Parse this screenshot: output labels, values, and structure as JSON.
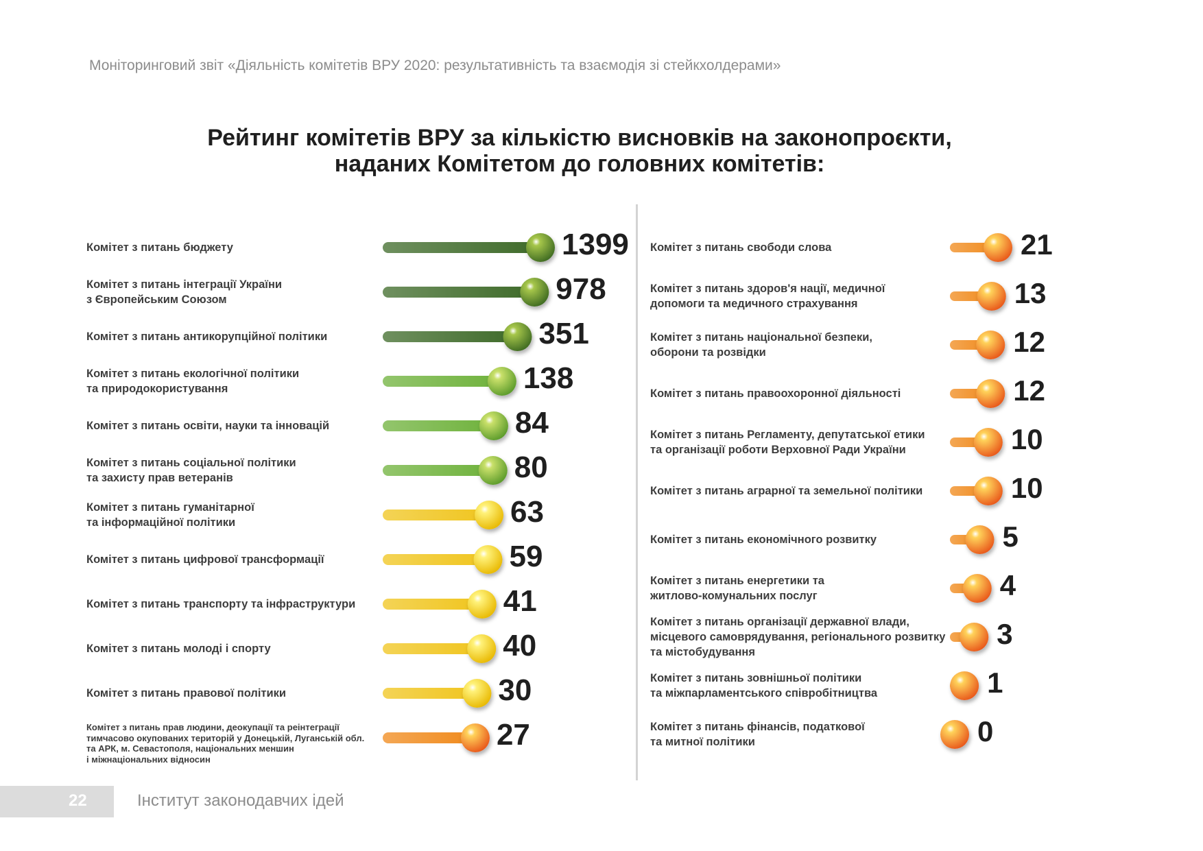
{
  "header": {
    "report_title": "Моніторинговий звіт «Діяльність комітетів ВРУ 2020: результативність та взаємодія зі стейкхолдерами»"
  },
  "footer": {
    "page_number": "22",
    "organization": "Інститут законодавчих ідей"
  },
  "chart_data": {
    "type": "bar",
    "title_line1": "Рейтинг комітетів ВРУ за кількістю висновків на законопроєкти,",
    "title_line2": "наданих Комітетом до головних комітетів:",
    "left_column": [
      {
        "label": [
          "Комітет з питань бюджету"
        ],
        "value": 1399,
        "color": "dark-green"
      },
      {
        "label": [
          "Комітет з питань інтеграції України",
          "з Європейським Союзом"
        ],
        "value": 978,
        "color": "dark-green"
      },
      {
        "label": [
          "Комітет з питань антикорупційної політики"
        ],
        "value": 351,
        "color": "dark-green"
      },
      {
        "label": [
          "Комітет з питань екологічної політики",
          "та природокористування"
        ],
        "value": 138,
        "color": "green"
      },
      {
        "label": [
          "Комітет з питань освіти, науки та інновацій"
        ],
        "value": 84,
        "color": "green"
      },
      {
        "label": [
          "Комітет з питань соціальної політики",
          "та захисту прав ветеранів"
        ],
        "value": 80,
        "color": "green"
      },
      {
        "label": [
          "Комітет з питань гуманітарної",
          "та інформаційної політики"
        ],
        "value": 63,
        "color": "yellow"
      },
      {
        "label": [
          "Комітет з питань цифрової трансформації"
        ],
        "value": 59,
        "color": "yellow"
      },
      {
        "label": [
          "Комітет з питань транспорту та інфраструктури"
        ],
        "value": 41,
        "color": "yellow"
      },
      {
        "label": [
          "Комітет з питань молоді і спорту"
        ],
        "value": 40,
        "color": "yellow"
      },
      {
        "label": [
          "Комітет з питань правової політики"
        ],
        "value": 30,
        "color": "yellow"
      },
      {
        "label": [
          "Комітет з питань прав людини, деокупації та реінтеграції",
          "тимчасово окупованих територій у Донецькій, Луганській обл.",
          "та АРК, м. Севастополя, національних меншин",
          "і міжнаціональних відносин"
        ],
        "value": 27,
        "color": "orange",
        "small": true
      }
    ],
    "right_column": [
      {
        "label": [
          "Комітет з питань свободи слова"
        ],
        "value": 21,
        "color": "orange"
      },
      {
        "label": [
          "Комітет з питань здоров'я нації, медичної",
          "допомоги та медичного страхування"
        ],
        "value": 13,
        "color": "orange"
      },
      {
        "label": [
          "Комітет з питань національної безпеки,",
          "оборони та розвідки"
        ],
        "value": 12,
        "color": "orange"
      },
      {
        "label": [
          "Комітет з питань правоохоронної діяльності"
        ],
        "value": 12,
        "color": "orange"
      },
      {
        "label": [
          "Комітет з питань Регламенту, депутатської етики",
          "та організації роботи Верховної Ради України"
        ],
        "value": 10,
        "color": "orange"
      },
      {
        "label": [
          "Комітет з питань аграрної та земельної політики"
        ],
        "value": 10,
        "color": "orange"
      },
      {
        "label": [
          "Комітет з питань економічного розвитку"
        ],
        "value": 5,
        "color": "orange"
      },
      {
        "label": [
          "Комітет з питань енергетики та",
          "житлово-комунальних послуг"
        ],
        "value": 4,
        "color": "orange"
      },
      {
        "label": [
          "Комітет з питань організації державної влади,",
          "місцевого самоврядування, регіонального розвитку",
          "та містобудування"
        ],
        "value": 3,
        "color": "orange"
      },
      {
        "label": [
          "Комітет з питань зовнішньої політики",
          "та міжпарламентського співробітництва"
        ],
        "value": 1,
        "color": "orange"
      },
      {
        "label": [
          "Комітет з питань фінансів, податкової",
          "та митної політики"
        ],
        "value": 0,
        "color": "orange"
      }
    ]
  },
  "colors": {
    "dark-green": {
      "bar": "#3f6b2a",
      "ball_light": "#a6c64a",
      "ball_dark": "#3e6a22"
    },
    "green": {
      "bar": "#6fb23c",
      "ball_light": "#c9e06a",
      "ball_dark": "#5a9a2a"
    },
    "yellow": {
      "bar": "#f0c51e",
      "ball_light": "#fff27a",
      "ball_dark": "#e8b800"
    },
    "orange": {
      "bar": "#f08a1c",
      "ball_light": "#ffd25a",
      "ball_dark": "#e8561a"
    }
  }
}
